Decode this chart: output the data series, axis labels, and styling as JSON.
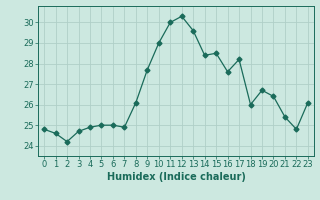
{
  "x": [
    0,
    1,
    2,
    3,
    4,
    5,
    6,
    7,
    8,
    9,
    10,
    11,
    12,
    13,
    14,
    15,
    16,
    17,
    18,
    19,
    20,
    21,
    22,
    23
  ],
  "y": [
    24.8,
    24.6,
    24.2,
    24.7,
    24.9,
    25.0,
    25.0,
    24.9,
    26.1,
    27.7,
    29.0,
    30.0,
    30.3,
    29.6,
    28.4,
    28.5,
    27.6,
    28.2,
    26.0,
    26.7,
    26.4,
    25.4,
    24.8,
    26.1
  ],
  "line_color": "#1a6b5a",
  "marker": "D",
  "marker_size": 2.5,
  "bg_color": "#cce8e0",
  "grid_color": "#b0cfc8",
  "xlabel": "Humidex (Indice chaleur)",
  "ylim": [
    23.5,
    30.8
  ],
  "xlim": [
    -0.5,
    23.5
  ],
  "yticks": [
    24,
    25,
    26,
    27,
    28,
    29,
    30
  ],
  "xticks": [
    0,
    1,
    2,
    3,
    4,
    5,
    6,
    7,
    8,
    9,
    10,
    11,
    12,
    13,
    14,
    15,
    16,
    17,
    18,
    19,
    20,
    21,
    22,
    23
  ],
  "tick_fontsize": 6.0,
  "label_fontsize": 7.0,
  "label_color": "#1a6b5a",
  "spine_color": "#1a6b5a"
}
